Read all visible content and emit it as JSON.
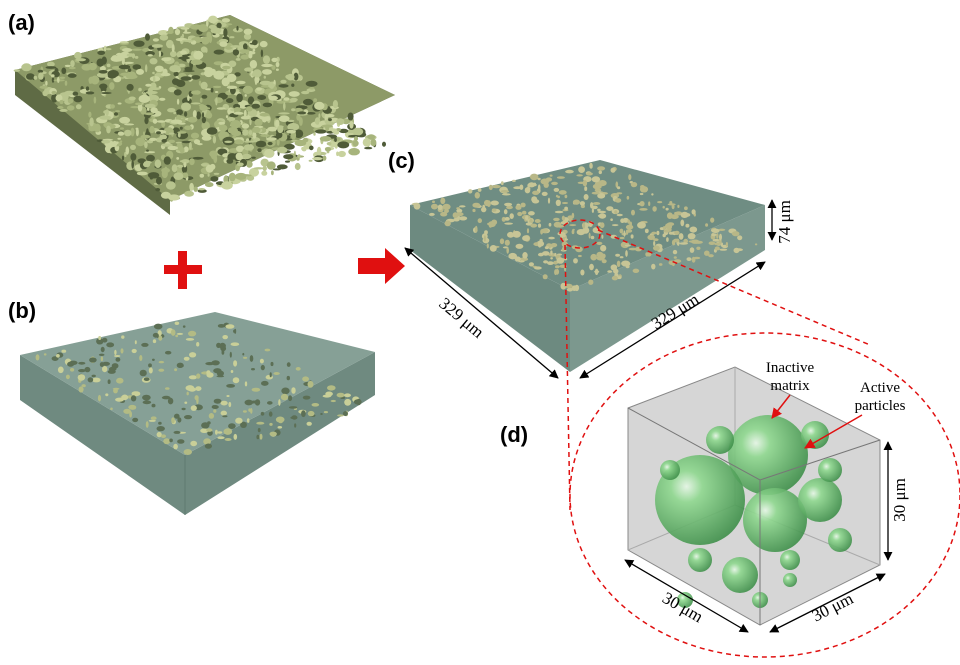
{
  "panels": {
    "a": {
      "label": "(a)"
    },
    "b": {
      "label": "(b)"
    },
    "c": {
      "label": "(c)",
      "width_label": "329 μm",
      "depth_label": "329 μm",
      "height_label": "74 μm"
    },
    "d": {
      "label": "(d)",
      "inactive_label": [
        "Inactive",
        "matrix"
      ],
      "active_label": [
        "Active",
        "particles"
      ],
      "dim_labels": [
        "30 μm",
        "30 μm",
        "30 μm"
      ]
    }
  }
}
